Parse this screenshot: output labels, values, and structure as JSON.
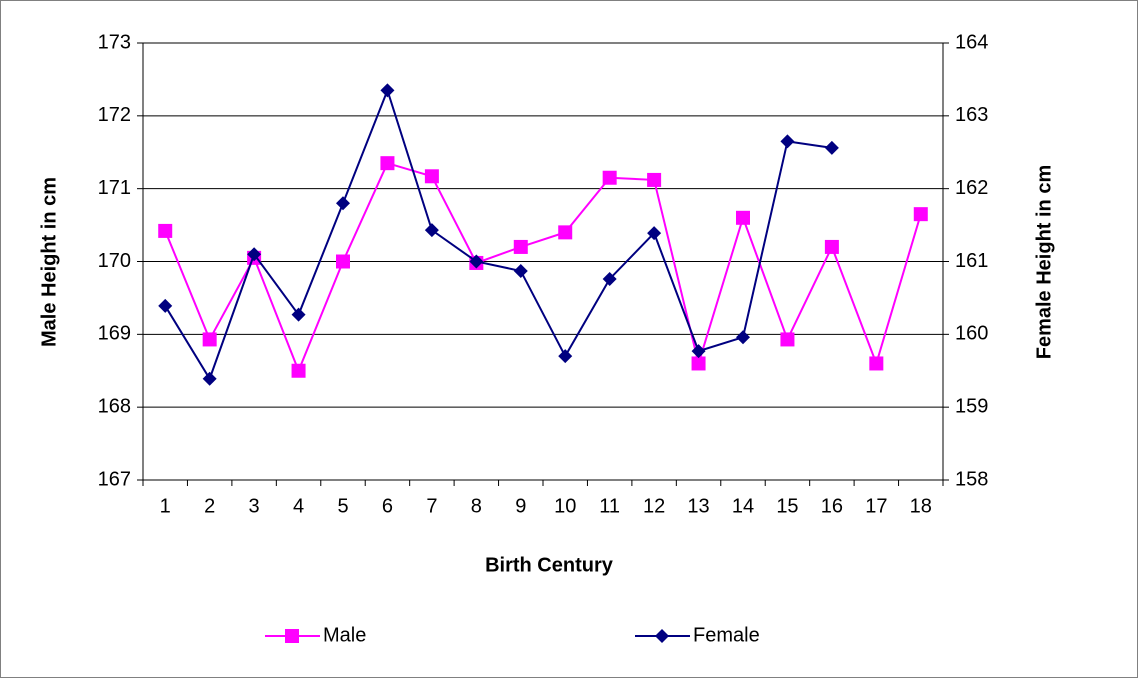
{
  "chart_data": {
    "type": "line",
    "x_label": "Birth Century",
    "y_label": "Male Height in cm",
    "y2_label": "Female Height in cm",
    "categories": [
      "1",
      "2",
      "3",
      "4",
      "5",
      "6",
      "7",
      "8",
      "9",
      "10",
      "11",
      "12",
      "13",
      "14",
      "15",
      "16",
      "17",
      "18"
    ],
    "series": [
      {
        "name": "Male",
        "color": "#ff00ff",
        "marker": "square",
        "axis": "y",
        "values": [
          170.42,
          168.93,
          170.05,
          168.5,
          170.0,
          171.35,
          171.17,
          169.98,
          170.2,
          170.4,
          171.15,
          171.12,
          168.6,
          170.6,
          168.93,
          170.2,
          168.6,
          170.65
        ]
      },
      {
        "name": "Female",
        "color": "#000080",
        "marker": "diamond",
        "axis": "y2",
        "values": [
          160.39,
          159.39,
          161.1,
          160.27,
          161.8,
          163.35,
          161.43,
          161.0,
          160.87,
          159.7,
          160.76,
          161.39,
          159.77,
          159.96,
          162.65,
          162.56,
          null,
          null
        ]
      }
    ],
    "ylim": [
      167,
      173
    ],
    "yticks": [
      167,
      168,
      169,
      170,
      171,
      172,
      173
    ],
    "y2lim": [
      158,
      164
    ],
    "y2ticks": [
      158,
      159,
      160,
      161,
      162,
      163,
      164
    ],
    "grid": true,
    "legend": "bottom"
  }
}
